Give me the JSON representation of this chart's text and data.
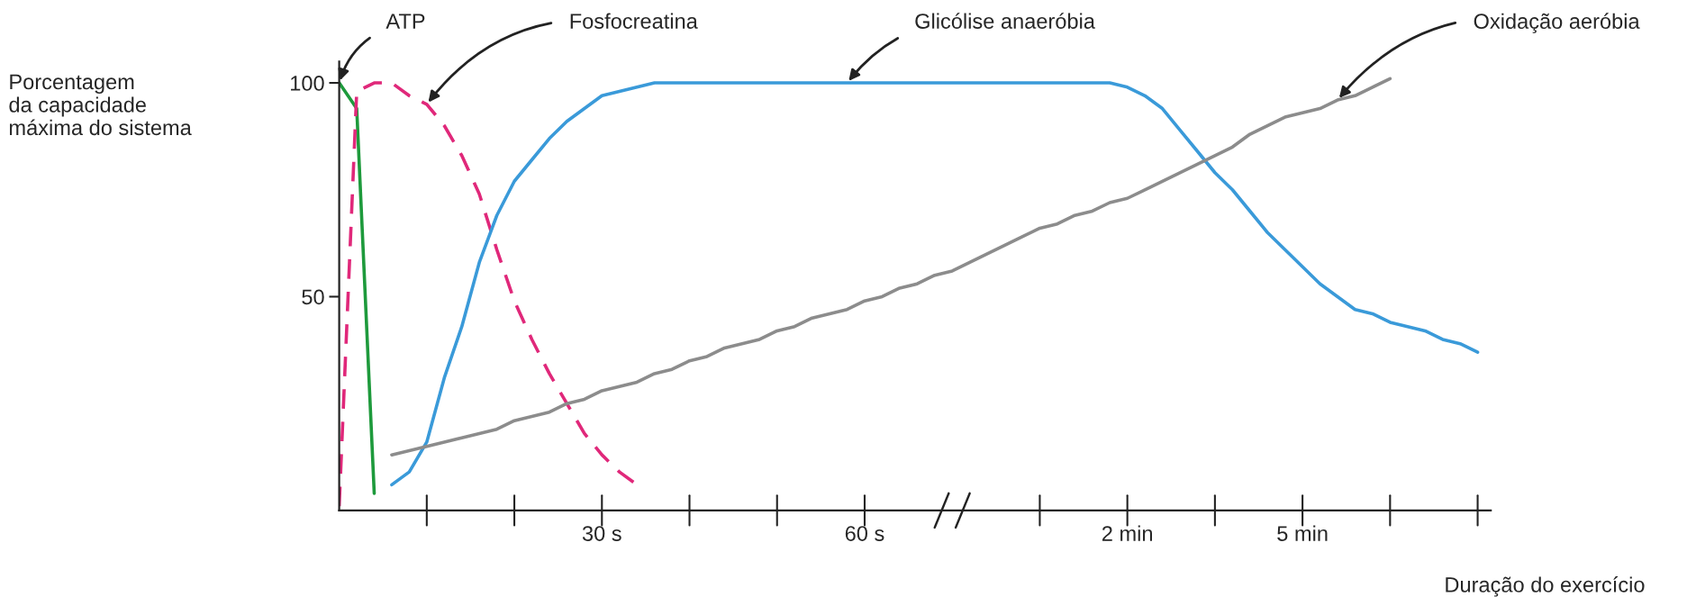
{
  "chart_data": {
    "type": "line",
    "ylabel": "Porcentagem\nda capacidade\nmáxima do sistema",
    "xlabel": "Duração do exercício",
    "categories": [
      null,
      null,
      null,
      null,
      null,
      null,
      null,
      null,
      null,
      null,
      null,
      null,
      null,
      null,
      null,
      "30 s",
      null,
      null,
      null,
      null,
      null,
      null,
      null,
      null,
      null,
      null,
      null,
      null,
      null,
      null,
      "60 s",
      null,
      null,
      null,
      null,
      null,
      null,
      null,
      null,
      null,
      null,
      null,
      null,
      null,
      null,
      "2 min",
      null,
      null,
      null,
      null,
      null,
      null,
      null,
      null,
      null,
      "5 min",
      null,
      null,
      null,
      null,
      null,
      null,
      null,
      null,
      null,
      null
    ],
    "ylim": [
      0,
      105
    ],
    "yticks": [
      50,
      100
    ],
    "grid": false,
    "legend": false,
    "marker": "none",
    "series": [
      {
        "name": "ATP",
        "color": "#1e9a3c",
        "line_style": "solid",
        "values": [
          100,
          94,
          4,
          null,
          null,
          null,
          null,
          null,
          null,
          null,
          null,
          null,
          null,
          null,
          null,
          null,
          null,
          null,
          null,
          null,
          null,
          null,
          null,
          null,
          null,
          null,
          null,
          null,
          null,
          null,
          null,
          null,
          null,
          null,
          null,
          null,
          null,
          null,
          null,
          null,
          null,
          null,
          null,
          null,
          null,
          null,
          null,
          null,
          null,
          null,
          null,
          null,
          null,
          null,
          null,
          null,
          null,
          null,
          null,
          null,
          null,
          null,
          null,
          null,
          null,
          null
        ]
      },
      {
        "name": "Fosfocreatina",
        "color": "#e0287a",
        "line_style": "dashed",
        "values": [
          1,
          98,
          100,
          100,
          97,
          95,
          90,
          83,
          74,
          61,
          49,
          40,
          32,
          25,
          18,
          13,
          9,
          6,
          null,
          null,
          null,
          null,
          null,
          null,
          null,
          null,
          null,
          null,
          null,
          null,
          null,
          null,
          null,
          null,
          null,
          null,
          null,
          null,
          null,
          null,
          null,
          null,
          null,
          null,
          null,
          null,
          null,
          null,
          null,
          null,
          null,
          null,
          null,
          null,
          null,
          null,
          null,
          null,
          null,
          null,
          null,
          null,
          null,
          null,
          null,
          null
        ]
      },
      {
        "name": "Glicólise anaeróbia",
        "color": "#3a9ad9",
        "line_style": "solid",
        "values": [
          null,
          null,
          null,
          6,
          9,
          16,
          31,
          43,
          58,
          69,
          77,
          82,
          87,
          91,
          94,
          97,
          98,
          99,
          100,
          100,
          100,
          100,
          100,
          100,
          100,
          100,
          100,
          100,
          100,
          100,
          100,
          100,
          100,
          100,
          100,
          100,
          100,
          100,
          100,
          100,
          100,
          100,
          100,
          100,
          100,
          99,
          97,
          94,
          89,
          84,
          79,
          75,
          70,
          65,
          61,
          57,
          53,
          50,
          47,
          46,
          44,
          43,
          42,
          40,
          39,
          37
        ]
      },
      {
        "name": "Oxidação aeróbia",
        "color": "#8c8c8c",
        "line_style": "solid",
        "values": [
          null,
          null,
          null,
          13,
          14,
          15,
          16,
          17,
          18,
          19,
          21,
          22,
          23,
          25,
          26,
          28,
          29,
          30,
          32,
          33,
          35,
          36,
          38,
          39,
          40,
          42,
          43,
          45,
          46,
          47,
          49,
          50,
          52,
          53,
          55,
          56,
          58,
          60,
          62,
          64,
          66,
          67,
          69,
          70,
          72,
          73,
          75,
          77,
          79,
          81,
          83,
          85,
          88,
          90,
          92,
          93,
          94,
          96,
          97,
          99,
          101,
          null,
          null,
          null,
          null,
          null
        ]
      }
    ]
  }
}
